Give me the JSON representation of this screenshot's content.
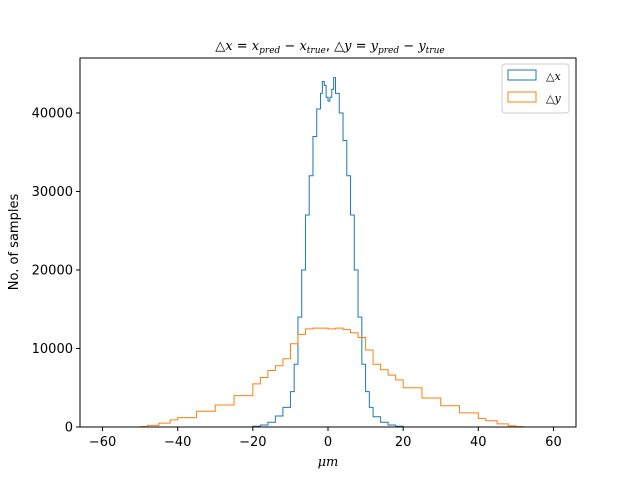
{
  "chart_data": {
    "type": "histogram",
    "title": "△x = x_pred − x_true, △y = y_pred − y_true",
    "xlabel": "μm",
    "ylabel": "No. of samples",
    "xlim": [
      -66,
      66
    ],
    "ylim": [
      0,
      47000
    ],
    "xticks": [
      -60,
      -40,
      -20,
      0,
      20,
      40,
      60
    ],
    "yticks": [
      0,
      10000,
      20000,
      30000,
      40000
    ],
    "xtick_labels": [
      "−60",
      "−40",
      "−20",
      "0",
      "20",
      "40",
      "60"
    ],
    "ytick_labels": [
      "0",
      "10000",
      "20000",
      "30000",
      "40000"
    ],
    "grid": false,
    "legend_position": "top-right",
    "series": [
      {
        "name": "△x",
        "color": "#1f77b4",
        "x": [
          -60,
          -50,
          -40,
          -30,
          -22,
          -20,
          -18,
          -16,
          -14,
          -12,
          -10,
          -9,
          -8,
          -7,
          -6,
          -5,
          -4,
          -3,
          -2,
          -1.5,
          -1,
          -0.5,
          0,
          0.5,
          1,
          1.5,
          2,
          3,
          4,
          5,
          6,
          7,
          8,
          9,
          10,
          11,
          12,
          14,
          16,
          18,
          20,
          30,
          40,
          50,
          60
        ],
        "y": [
          0,
          0,
          0,
          0,
          0,
          100,
          250,
          600,
          1400,
          2500,
          4500,
          8000,
          14000,
          20000,
          27000,
          32000,
          37000,
          40500,
          42500,
          44000,
          43500,
          42000,
          41500,
          42000,
          43000,
          44500,
          42500,
          40000,
          36500,
          32000,
          27000,
          20000,
          14000,
          8000,
          4500,
          2500,
          1300,
          600,
          250,
          100,
          0,
          0,
          0,
          0,
          0
        ]
      },
      {
        "name": "△y",
        "color": "#ff7f0e",
        "x": [
          -60,
          -55,
          -50,
          -48,
          -45,
          -42,
          -40,
          -35,
          -30,
          -25,
          -20,
          -18,
          -16,
          -14,
          -12,
          -10,
          -8,
          -6,
          -4,
          -2,
          0,
          2,
          4,
          6,
          8,
          10,
          12,
          14,
          16,
          18,
          20,
          25,
          30,
          35,
          40,
          42,
          45,
          48,
          50,
          52,
          55,
          60
        ],
        "y": [
          0,
          0,
          50,
          200,
          500,
          900,
          1200,
          2000,
          2800,
          4000,
          5500,
          6300,
          7200,
          7800,
          8700,
          10600,
          11800,
          12500,
          12600,
          12600,
          12500,
          12600,
          12400,
          12000,
          11400,
          9800,
          8000,
          7300,
          6600,
          6000,
          5000,
          3700,
          2700,
          1800,
          1100,
          800,
          400,
          150,
          50,
          0,
          0,
          0
        ]
      }
    ]
  }
}
